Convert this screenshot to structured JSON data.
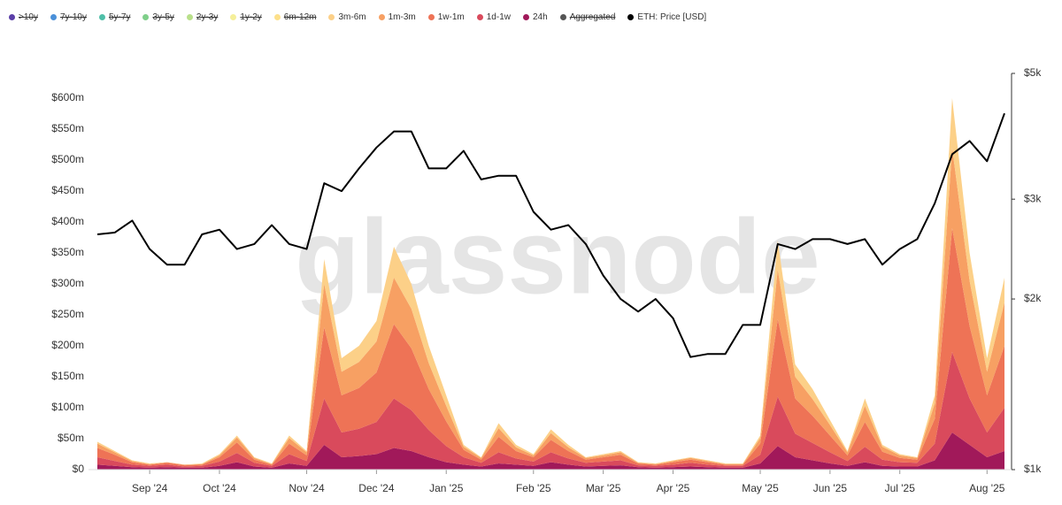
{
  "chart_data": {
    "type": "area",
    "stacked": true,
    "watermark": "glassnode",
    "categories": [
      null,
      null,
      null,
      "Sep '24",
      null,
      null,
      null,
      "Oct '24",
      null,
      null,
      null,
      null,
      "Nov '24",
      null,
      null,
      null,
      "Dec '24",
      null,
      null,
      null,
      "Jan '25",
      null,
      null,
      null,
      null,
      "Feb '25",
      null,
      null,
      null,
      "Mar '25",
      null,
      null,
      null,
      "Apr '25",
      null,
      null,
      null,
      null,
      "May '25",
      null,
      null,
      null,
      "Jun '25",
      null,
      null,
      null,
      "Jul '25",
      null,
      null,
      null,
      null,
      "Aug '25",
      null
    ],
    "ylim": [
      0,
      640
    ],
    "yticks": [
      {
        "value": 0,
        "label": "$0"
      },
      {
        "value": 50,
        "label": "$50m"
      },
      {
        "value": 100,
        "label": "$100m"
      },
      {
        "value": 150,
        "label": "$150m"
      },
      {
        "value": 200,
        "label": "$200m"
      },
      {
        "value": 250,
        "label": "$250m"
      },
      {
        "value": 300,
        "label": "$300m"
      },
      {
        "value": 350,
        "label": "$350m"
      },
      {
        "value": 400,
        "label": "$400m"
      },
      {
        "value": 450,
        "label": "$450m"
      },
      {
        "value": 500,
        "label": "$500m"
      },
      {
        "value": 550,
        "label": "$550m"
      },
      {
        "value": 600,
        "label": "$600m"
      }
    ],
    "y2lim": [
      1000,
      5000
    ],
    "y2log": true,
    "y2ticks": [
      {
        "value": 1000,
        "label": "$1k"
      },
      {
        "value": 2000,
        "label": "$2k"
      },
      {
        "value": 3000,
        "label": "$3k"
      },
      {
        "value": 5000,
        "label": "$5k"
      }
    ],
    "series": [
      {
        "name": ">10y",
        "color": "#5b3fa8",
        "visible": false
      },
      {
        "name": "7y-10y",
        "color": "#4a90d9",
        "visible": false
      },
      {
        "name": "5y-7y",
        "color": "#4fbfa8",
        "visible": false
      },
      {
        "name": "3y-5y",
        "color": "#7fcf8a",
        "visible": false
      },
      {
        "name": "2y-3y",
        "color": "#b9e08a",
        "visible": false
      },
      {
        "name": "1y-2y",
        "color": "#f5ef9a",
        "visible": false
      },
      {
        "name": "6m-12m",
        "color": "#fde08a",
        "visible": false
      },
      {
        "name": "3m-6m",
        "color": "#fcd088",
        "values": [
          3,
          2,
          1,
          1,
          0,
          0,
          1,
          2,
          3,
          1,
          1,
          4,
          2,
          40,
          22,
          26,
          33,
          50,
          40,
          28,
          17,
          3,
          1,
          8,
          4,
          2,
          6,
          4,
          1,
          2,
          2,
          1,
          1,
          1,
          1,
          1,
          1,
          1,
          4,
          47,
          20,
          16,
          8,
          2,
          12,
          3,
          2,
          1,
          13,
          80,
          45,
          22,
          40
        ]
      },
      {
        "name": "1m-3m",
        "color": "#f7a063",
        "values": [
          7,
          4,
          2,
          1,
          1,
          1,
          1,
          3,
          8,
          3,
          1,
          9,
          5,
          70,
          38,
          42,
          50,
          75,
          64,
          42,
          25,
          5,
          3,
          14,
          6,
          3,
          11,
          6,
          3,
          3,
          4,
          1,
          1,
          2,
          3,
          2,
          1,
          1,
          9,
          80,
          35,
          27,
          17,
          5,
          26,
          8,
          4,
          3,
          25,
          130,
          73,
          38,
          70
        ]
      },
      {
        "name": "1w-1m",
        "color": "#ee7356",
        "values": [
          15,
          10,
          4,
          2,
          3,
          2,
          2,
          7,
          17,
          5,
          2,
          17,
          9,
          115,
          60,
          66,
          80,
          120,
          100,
          66,
          40,
          12,
          5,
          25,
          12,
          7,
          20,
          12,
          5,
          7,
          9,
          3,
          2,
          4,
          5,
          4,
          2,
          2,
          18,
          125,
          57,
          44,
          27,
          9,
          40,
          13,
          7,
          5,
          40,
          200,
          117,
          60,
          100
        ]
      },
      {
        "name": "1d-1w",
        "color": "#d94a5c",
        "values": [
          12,
          8,
          4,
          3,
          4,
          2,
          3,
          7,
          15,
          6,
          3,
          15,
          8,
          75,
          40,
          44,
          52,
          80,
          66,
          44,
          26,
          12,
          6,
          18,
          10,
          7,
          16,
          10,
          6,
          7,
          8,
          3,
          3,
          4,
          6,
          4,
          3,
          3,
          14,
          80,
          38,
          28,
          18,
          8,
          25,
          10,
          7,
          6,
          27,
          130,
          75,
          40,
          70
        ]
      },
      {
        "name": "24h",
        "color": "#a1195a",
        "values": [
          8,
          6,
          4,
          3,
          4,
          3,
          3,
          6,
          12,
          5,
          3,
          10,
          6,
          40,
          20,
          22,
          25,
          35,
          30,
          20,
          12,
          8,
          5,
          10,
          8,
          6,
          12,
          8,
          5,
          6,
          7,
          4,
          3,
          4,
          5,
          4,
          3,
          3,
          10,
          38,
          20,
          15,
          10,
          6,
          12,
          6,
          5,
          5,
          15,
          60,
          40,
          20,
          30
        ]
      },
      {
        "name": "Aggregated",
        "color": "#555555",
        "visible": false
      },
      {
        "name": "ETH: Price [USD]",
        "color": "#000000",
        "type": "line",
        "axis": "y2",
        "values": [
          2600,
          2620,
          2750,
          2450,
          2300,
          2300,
          2600,
          2650,
          2450,
          2500,
          2700,
          2500,
          2450,
          3200,
          3100,
          3400,
          3700,
          3950,
          3950,
          3400,
          3400,
          3650,
          3250,
          3300,
          3300,
          2850,
          2650,
          2700,
          2500,
          2200,
          2000,
          1900,
          2000,
          1850,
          1580,
          1600,
          1600,
          1800,
          1800,
          2500,
          2450,
          2550,
          2550,
          2500,
          2550,
          2300,
          2450,
          2550,
          2950,
          3600,
          3800,
          3500,
          4250
        ]
      }
    ]
  }
}
